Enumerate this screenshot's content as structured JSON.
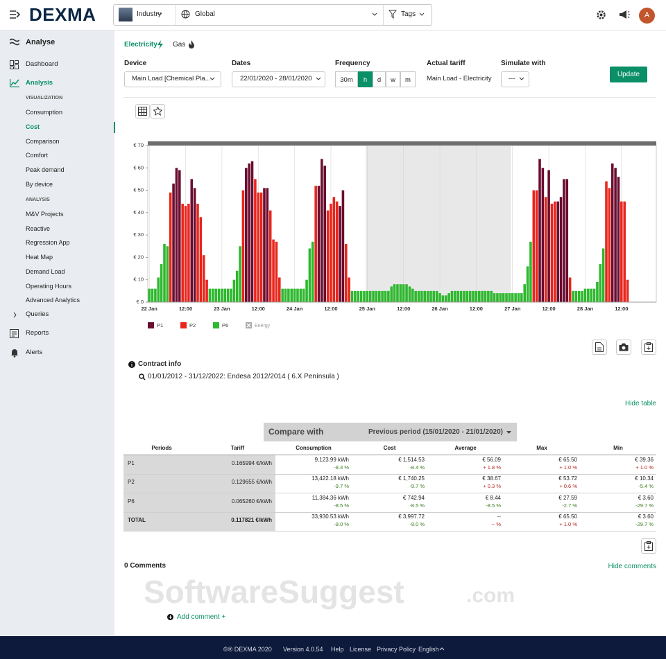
{
  "header": {
    "logo": "DEXMA",
    "site": "Industry",
    "location": "Global",
    "tags": "Tags",
    "avatar": "A"
  },
  "sidebar": {
    "analyse": "Analyse",
    "dashboard": "Dashboard",
    "analysis": "Analysis",
    "visualization_heading": "VISUALIZATION",
    "visualization": [
      "Consumption",
      "Cost",
      "Comparison",
      "Comfort",
      "Peak demand",
      "By device"
    ],
    "analysis_heading": "ANALYSIS",
    "analysis_items": [
      "M&V Projects",
      "Reactive",
      "Regression App",
      "Heat Map",
      "Demand Load",
      "Operating Hours",
      "Advanced Analytics"
    ],
    "queries": "Queries",
    "reports": "Reports",
    "alerts": "Alerts"
  },
  "tabs": [
    "Electricity",
    "Gas"
  ],
  "filters": {
    "device_label": "Device",
    "device": "Main Load [Chemical Pla...",
    "dates_label": "Dates",
    "dates": "22/01/2020 - 28/01/2020",
    "frequency_label": "Frequency",
    "frequency": [
      "30m",
      "h",
      "d",
      "w",
      "m"
    ],
    "frequency_selected": "h",
    "tariff_label": "Actual tariff",
    "tariff": "Main Load - Electricity",
    "simulate_label": "Simulate with",
    "simulate": "---",
    "update": "Update"
  },
  "chart_data": {
    "type": "bar",
    "xlim": [
      0,
      168
    ],
    "xticks": [
      {
        "value": 0,
        "label": "22 Jan"
      },
      {
        "value": 12,
        "label": "12:00"
      },
      {
        "value": 24,
        "label": "23 Jan"
      },
      {
        "value": 36,
        "label": "12:00"
      },
      {
        "value": 48,
        "label": "24 Jan"
      },
      {
        "value": 60,
        "label": "12:00"
      },
      {
        "value": 72,
        "label": "25 Jan"
      },
      {
        "value": 84,
        "label": "12:00"
      },
      {
        "value": 96,
        "label": "26 Jan"
      },
      {
        "value": 108,
        "label": "12:00"
      },
      {
        "value": 120,
        "label": "27 Jan"
      },
      {
        "value": 132,
        "label": "12:00"
      },
      {
        "value": 144,
        "label": "28 Jan"
      },
      {
        "value": 156,
        "label": "12:00"
      }
    ],
    "ylim": [
      0,
      70
    ],
    "yticks": [
      {
        "value": 0,
        "label": "€ 0"
      },
      {
        "value": 10,
        "label": "€ 10"
      },
      {
        "value": 20,
        "label": "€ 20"
      },
      {
        "value": 30,
        "label": "€ 30"
      },
      {
        "value": 40,
        "label": "€ 40"
      },
      {
        "value": 50,
        "label": "€ 50"
      },
      {
        "value": 60,
        "label": "€ 60"
      },
      {
        "value": 70,
        "label": "€ 70"
      }
    ],
    "grid": true,
    "series": [
      {
        "name": "P1",
        "color": "#6b0d30",
        "values": [
          null,
          null,
          null,
          null,
          null,
          null,
          null,
          null,
          53,
          60,
          59,
          null,
          null,
          null,
          55,
          51,
          null,
          null,
          null,
          null,
          null,
          null,
          null,
          null,
          null,
          null,
          null,
          null,
          null,
          null,
          null,
          null,
          60,
          62,
          63,
          null,
          null,
          null,
          51,
          51,
          null,
          null,
          null,
          null,
          null,
          null,
          null,
          null,
          null,
          null,
          null,
          null,
          null,
          null,
          null,
          null,
          52,
          64,
          61,
          null,
          null,
          null,
          null,
          43,
          50,
          null,
          null,
          null,
          null,
          null,
          null,
          null,
          null,
          null,
          null,
          null,
          null,
          null,
          null,
          null,
          null,
          null,
          null,
          null,
          null,
          null,
          null,
          null,
          null,
          null,
          null,
          null,
          null,
          null,
          null,
          null,
          null,
          null,
          null,
          null,
          null,
          null,
          null,
          null,
          null,
          null,
          null,
          null,
          null,
          null,
          null,
          null,
          null,
          null,
          null,
          null,
          null,
          null,
          null,
          null,
          null,
          null,
          null,
          null,
          null,
          null,
          null,
          null,
          null,
          64,
          60,
          null,
          59,
          null,
          null,
          45,
          47,
          55,
          55,
          null,
          null,
          null,
          null,
          null,
          null,
          null,
          null,
          null,
          null,
          null,
          null,
          null,
          null,
          62,
          60,
          56,
          null,
          null,
          null
        ]
      },
      {
        "name": "P2",
        "color": "#e8261c",
        "values": [
          null,
          null,
          null,
          null,
          null,
          null,
          null,
          49,
          null,
          null,
          null,
          44,
          43,
          44,
          null,
          null,
          44,
          38,
          21,
          10,
          null,
          null,
          null,
          null,
          null,
          null,
          null,
          null,
          null,
          null,
          null,
          50,
          null,
          null,
          null,
          55,
          49,
          49,
          null,
          null,
          41,
          28,
          27,
          11,
          null,
          null,
          null,
          null,
          null,
          null,
          null,
          null,
          null,
          null,
          null,
          52,
          null,
          null,
          null,
          41,
          44,
          47,
          45,
          null,
          null,
          26,
          11,
          null,
          null,
          null,
          null,
          null,
          null,
          null,
          null,
          null,
          null,
          null,
          null,
          null,
          null,
          null,
          null,
          null,
          null,
          null,
          null,
          null,
          null,
          null,
          null,
          null,
          null,
          null,
          null,
          null,
          null,
          null,
          null,
          null,
          null,
          null,
          null,
          null,
          null,
          null,
          null,
          null,
          null,
          null,
          null,
          null,
          null,
          null,
          null,
          null,
          null,
          null,
          null,
          null,
          null,
          null,
          null,
          null,
          null,
          null,
          null,
          50,
          50,
          null,
          null,
          47,
          null,
          44,
          45,
          null,
          null,
          null,
          null,
          11,
          null,
          null,
          null,
          null,
          null,
          null,
          null,
          null,
          null,
          null,
          null,
          54,
          51,
          null,
          null,
          null,
          45,
          45,
          10
        ]
      },
      {
        "name": "P6",
        "color": "#2eb82e",
        "values": [
          6,
          6,
          6,
          11,
          17,
          26,
          25,
          null,
          null,
          null,
          null,
          null,
          null,
          null,
          null,
          null,
          null,
          null,
          null,
          null,
          6,
          6,
          6,
          6,
          6,
          6,
          6,
          6,
          10,
          14,
          25,
          null,
          null,
          null,
          null,
          null,
          null,
          null,
          null,
          null,
          null,
          null,
          null,
          null,
          6,
          6,
          6,
          6,
          6,
          6,
          6,
          6,
          10,
          24,
          27,
          null,
          null,
          null,
          null,
          null,
          null,
          null,
          null,
          null,
          null,
          null,
          null,
          5,
          5,
          5,
          5,
          5,
          5,
          5,
          5,
          5,
          5,
          5,
          5,
          5,
          7,
          8,
          8,
          8,
          8,
          8,
          7,
          6,
          5,
          5,
          5,
          5,
          5,
          5,
          5,
          5,
          4,
          3,
          3,
          4,
          5,
          5,
          5,
          5,
          5,
          5,
          5,
          5,
          5,
          5,
          5,
          5,
          5,
          5,
          4,
          4,
          4,
          4,
          4,
          4,
          4,
          4,
          4,
          4,
          8,
          16,
          27,
          null,
          null,
          null,
          null,
          null,
          null,
          null,
          null,
          null,
          null,
          null,
          null,
          null,
          5,
          5,
          5,
          5,
          6,
          6,
          6,
          6,
          9,
          17,
          24,
          null,
          null,
          null,
          null,
          null,
          null,
          null,
          null
        ]
      }
    ],
    "hidden_series": [
      {
        "name": "Energy"
      }
    ]
  },
  "contract": {
    "title": "Contract info",
    "detail": "01/01/2012 - 31/12/2022: Endesa 2012/2014 ( 6.X Península )"
  },
  "hide_table": "Hide table",
  "table": {
    "compare_label": "Compare with",
    "compare_period": "Previous period (15/01/2020 - 21/01/2020)",
    "columns": [
      "Periods",
      "Tariff",
      "Consumption",
      "Cost",
      "Average",
      "Max",
      "Min"
    ],
    "rows": [
      {
        "period": "P1",
        "tariff": "0.165994 €/kWh",
        "cells": [
          {
            "value": "9,123.99 kWh",
            "change": "-8.4 %"
          },
          {
            "value": "€ 1,514.53",
            "change": "-8.4 %"
          },
          {
            "value": "€ 56.09",
            "change": "+ 1.8 %"
          },
          {
            "value": "€ 65.50",
            "change": "+ 1.0 %"
          },
          {
            "value": "€ 39.36",
            "change": "+ 1.0 %"
          }
        ]
      },
      {
        "period": "P2",
        "tariff": "0.129655 €/kWh",
        "cells": [
          {
            "value": "13,422.18 kWh",
            "change": "-9.7 %"
          },
          {
            "value": "€ 1,740.25",
            "change": "-9.7 %"
          },
          {
            "value": "€ 38.67",
            "change": "+ 0.3 %"
          },
          {
            "value": "€ 53.72",
            "change": "+ 0.6 %"
          },
          {
            "value": "€ 10.34",
            "change": "-5.4 %"
          }
        ]
      },
      {
        "period": "P6",
        "tariff": "0.065260 €/kWh",
        "cells": [
          {
            "value": "11,384.36 kWh",
            "change": "-8.5 %"
          },
          {
            "value": "€ 742.94",
            "change": "-8.5 %"
          },
          {
            "value": "€ 8.44",
            "change": "-8.5 %"
          },
          {
            "value": "€ 27.59",
            "change": "-2.7 %"
          },
          {
            "value": "€ 3.60",
            "change": "-29.7 %"
          }
        ]
      },
      {
        "period": "TOTAL",
        "tariff": "0.117821 €/kWh",
        "cells": [
          {
            "value": "33,930.53 kWh",
            "change": "-9.0 %"
          },
          {
            "value": "€ 3,997.72",
            "change": "-9.0 %"
          },
          {
            "value": "--",
            "change": "-- %"
          },
          {
            "value": "€ 65.50",
            "change": "+ 1.0 %"
          },
          {
            "value": "€ 3.60",
            "change": "-29.7 %"
          }
        ]
      }
    ]
  },
  "comments": {
    "count": "0 Comments",
    "hide": "Hide comments",
    "add": "Add comment +"
  },
  "watermark": {
    "name": "SoftwareSuggest",
    "suffix": ".com"
  },
  "footer": {
    "copyright": "©® DEXMA 2020",
    "version": "Version 4.0.54",
    "links": [
      "Help",
      "License",
      "Privacy Policy"
    ],
    "language": "English"
  }
}
